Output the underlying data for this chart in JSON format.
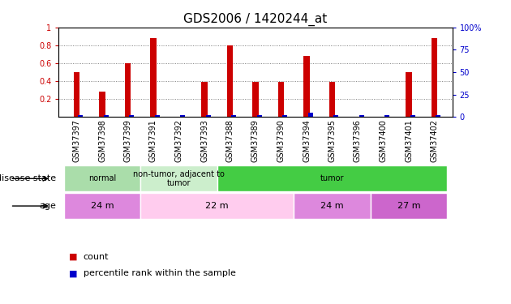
{
  "title": "GDS2006 / 1420244_at",
  "samples": [
    "GSM37397",
    "GSM37398",
    "GSM37399",
    "GSM37391",
    "GSM37392",
    "GSM37393",
    "GSM37388",
    "GSM37389",
    "GSM37390",
    "GSM37394",
    "GSM37395",
    "GSM37396",
    "GSM37400",
    "GSM37401",
    "GSM37402"
  ],
  "count_values": [
    0.5,
    0.28,
    0.6,
    0.88,
    0.0,
    0.39,
    0.8,
    0.39,
    0.39,
    0.68,
    0.39,
    0.0,
    0.0,
    0.5,
    0.88
  ],
  "percentile_values": [
    0.02,
    0.02,
    0.02,
    0.02,
    0.02,
    0.02,
    0.02,
    0.02,
    0.02,
    0.05,
    0.02,
    0.02,
    0.02,
    0.02,
    0.02
  ],
  "count_color": "#cc0000",
  "percentile_color": "#0000cc",
  "bar_width": 0.25,
  "pct_bar_width": 0.18,
  "ylim_left": [
    0,
    1.0
  ],
  "ylim_right": [
    0,
    100
  ],
  "yticks_left": [
    0.2,
    0.4,
    0.6,
    0.8,
    1.0
  ],
  "yticks_right": [
    0,
    25,
    50,
    75,
    100
  ],
  "ytick_labels_left": [
    "0.2",
    "0.4",
    "0.6",
    "0.8",
    "1"
  ],
  "ytick_labels_right": [
    "0",
    "25",
    "50",
    "75",
    "100%"
  ],
  "grid_color": "#000000",
  "background_color": "#ffffff",
  "disease_state_row": {
    "label": "disease state",
    "groups": [
      {
        "label": "normal",
        "start": 0,
        "end": 3,
        "color": "#aaddaa"
      },
      {
        "label": "non-tumor, adjacent to\ntumor",
        "start": 3,
        "end": 6,
        "color": "#cceecc"
      },
      {
        "label": "tumor",
        "start": 6,
        "end": 15,
        "color": "#44cc44"
      }
    ]
  },
  "age_row": {
    "label": "age",
    "groups": [
      {
        "label": "24 m",
        "start": 0,
        "end": 3,
        "color": "#dd88dd"
      },
      {
        "label": "22 m",
        "start": 3,
        "end": 9,
        "color": "#ffccee"
      },
      {
        "label": "24 m",
        "start": 9,
        "end": 12,
        "color": "#dd88dd"
      },
      {
        "label": "27 m",
        "start": 12,
        "end": 15,
        "color": "#cc66cc"
      }
    ]
  },
  "legend_items": [
    {
      "label": "count",
      "color": "#cc0000"
    },
    {
      "label": "percentile rank within the sample",
      "color": "#0000cc"
    }
  ],
  "left_axis_color": "#cc0000",
  "right_axis_color": "#0000cc",
  "title_fontsize": 11,
  "tick_fontsize": 7,
  "annotation_fontsize": 8,
  "legend_fontsize": 8
}
